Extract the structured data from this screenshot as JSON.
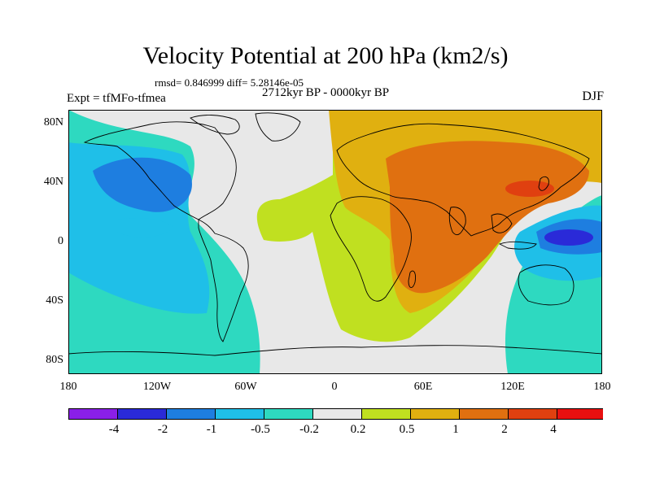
{
  "title": "Velocity Potential at 200 hPa (km2/s)",
  "stats": "rmsd= 0.846999 diff= 5.28146e-05",
  "period": "2712kyr BP - 0000kyr BP",
  "experiment": "Expt = tfMFo-tfmea",
  "season": "DJF",
  "lat_ticks": [
    "80N",
    "40N",
    "0",
    "40S",
    "80S"
  ],
  "lon_ticks": [
    "180",
    "120W",
    "60W",
    "0",
    "60E",
    "120E",
    "180"
  ],
  "colorbar": {
    "colors": [
      "#8a1fe8",
      "#2a2ad8",
      "#1e7ee0",
      "#1fbfe8",
      "#2ed9c0",
      "#e8e8e8",
      "#c0e020",
      "#e0b010",
      "#e07010",
      "#e04010",
      "#e81010"
    ],
    "labels": [
      "-4",
      "-2",
      "-1",
      "-0.5",
      "-0.2",
      "0.2",
      "0.5",
      "1",
      "2",
      "4"
    ]
  }
}
